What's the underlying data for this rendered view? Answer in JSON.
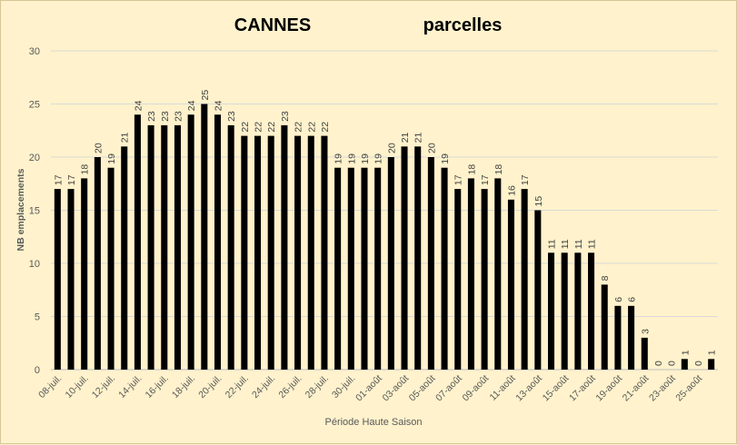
{
  "chart_data": {
    "type": "bar",
    "title": "CANNES",
    "subtitle": "parcelles",
    "xlabel": "Période Haute Saison",
    "ylabel": "NB emplacements",
    "ylim": [
      0,
      30
    ],
    "yticks": [
      0,
      5,
      10,
      15,
      20,
      25,
      30
    ],
    "grid": true,
    "bar_color": "#000000",
    "grid_color": "#d9d9d9",
    "values": [
      17,
      17,
      18,
      20,
      19,
      21,
      24,
      23,
      23,
      23,
      24,
      25,
      24,
      23,
      22,
      22,
      22,
      23,
      22,
      22,
      22,
      19,
      19,
      19,
      19,
      20,
      21,
      21,
      20,
      19,
      17,
      18,
      17,
      18,
      16,
      17,
      15,
      11,
      11,
      11,
      11,
      8,
      6,
      6,
      3,
      0,
      0,
      1,
      0,
      1
    ],
    "tick_labels": [
      "08-juil.",
      "10-juil.",
      "12-juil.",
      "14-juil.",
      "16-juil.",
      "18-juil.",
      "20-juil.",
      "22-juil.",
      "24-juil.",
      "26-juil.",
      "28-juil.",
      "30-juil.",
      "01-août",
      "03-août",
      "05-août",
      "07-août",
      "09-août",
      "11-août",
      "13-août",
      "15-août",
      "17-août",
      "19-août",
      "21-août",
      "23-août",
      "25-août"
    ]
  }
}
